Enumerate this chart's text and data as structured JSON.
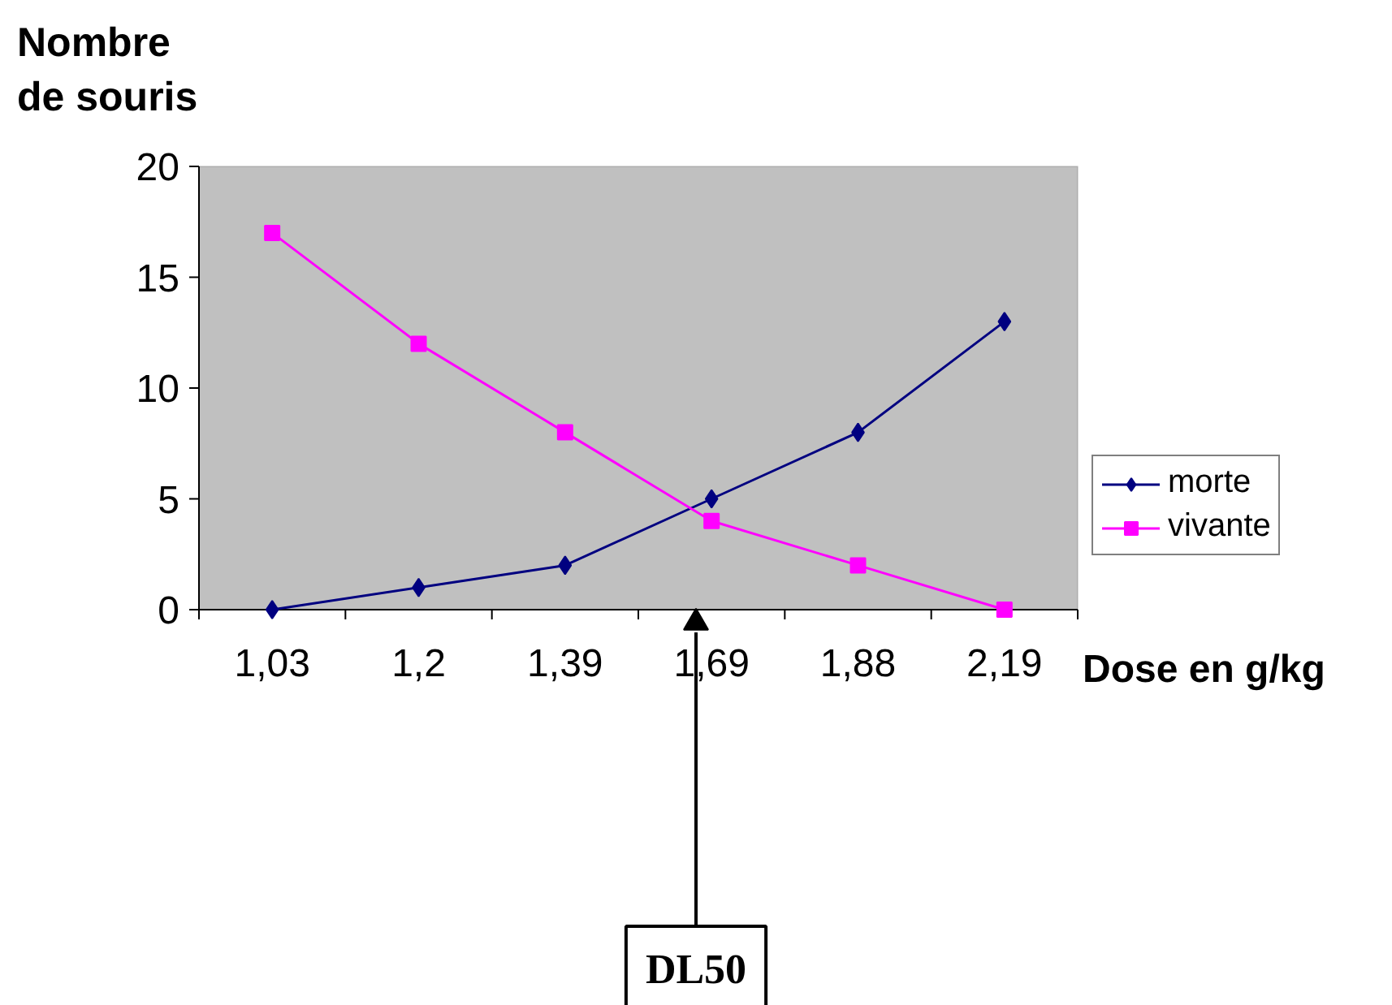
{
  "chart_data": {
    "type": "line",
    "ylabel": "Nombre de souris",
    "xlabel": "Dose en g/kg",
    "categories": [
      "1,03",
      "1,2",
      "1,39",
      "1,69",
      "1,88",
      "2,19"
    ],
    "series": [
      {
        "name": "morte",
        "color": "#000080",
        "marker": "diamond",
        "values": [
          0,
          1,
          2,
          5,
          8,
          13
        ]
      },
      {
        "name": "vivante",
        "color": "#ff00ff",
        "marker": "square",
        "values": [
          17,
          12,
          8,
          4,
          2,
          0
        ]
      }
    ],
    "ylim": [
      0,
      20
    ],
    "yticks": [
      0,
      5,
      10,
      15,
      20
    ],
    "grid": false,
    "legend": "right",
    "annotations": [
      "DL50"
    ]
  }
}
